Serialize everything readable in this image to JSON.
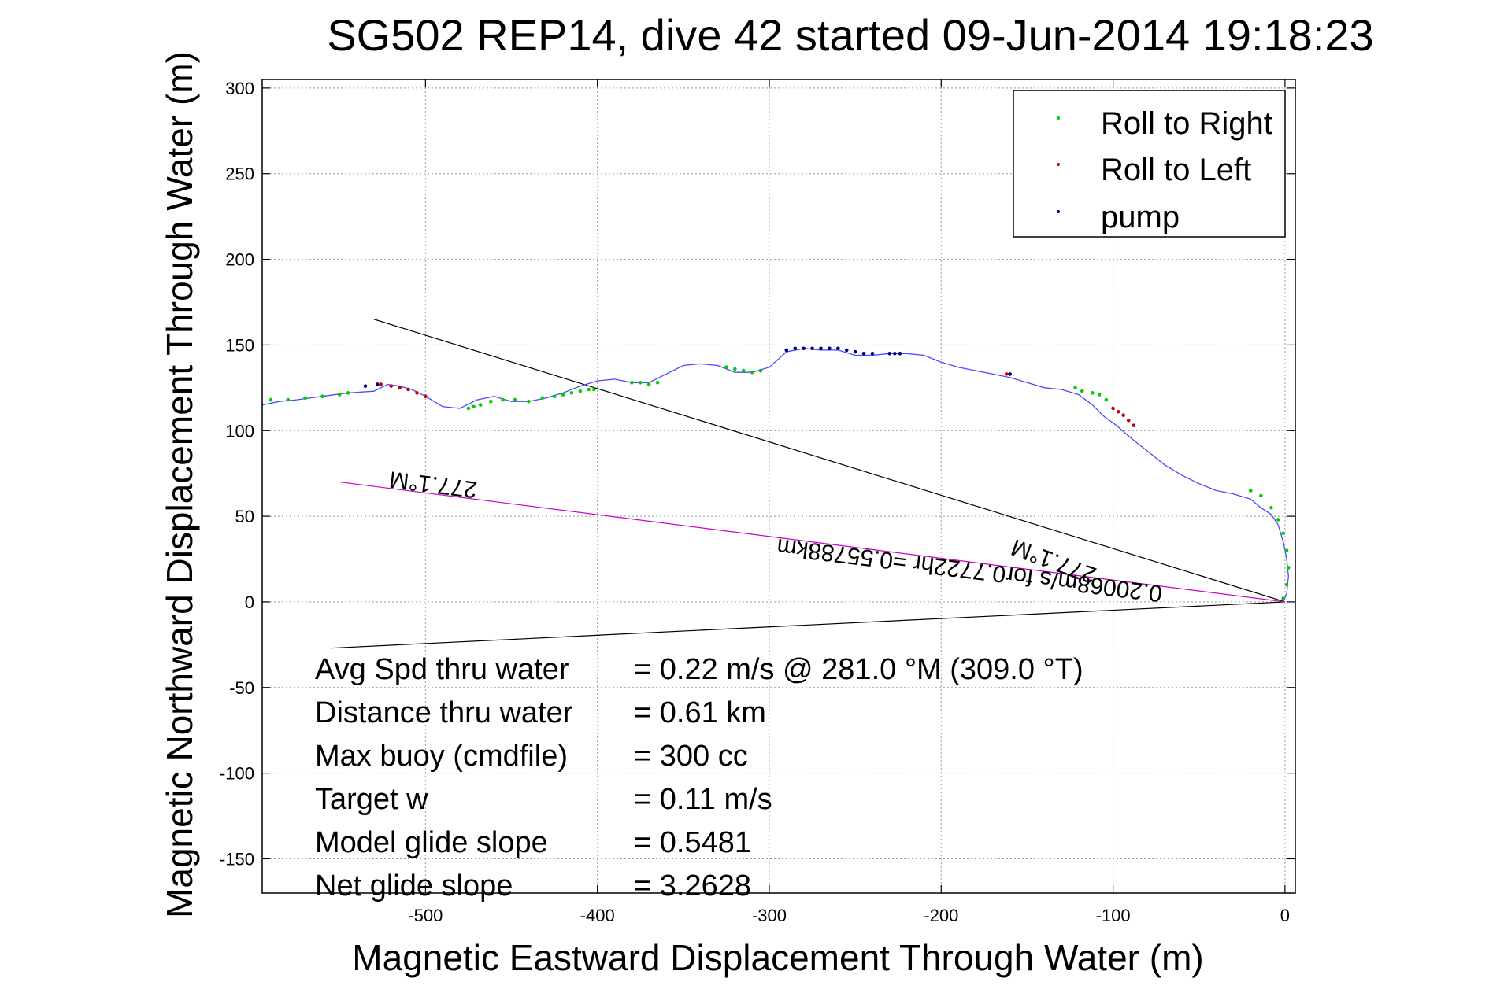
{
  "chart_data": {
    "type": "scatter",
    "title": "SG502 REP14, dive 42 started 09-Jun-2014 19:18:23",
    "xlabel": "Magnetic Eastward Displacement Through Water (m)",
    "ylabel": "Magnetic Northward Displacement Through Water (m)",
    "xlim": [
      -595,
      6
    ],
    "ylim": [
      -170,
      305
    ],
    "xticks": [
      -500,
      -400,
      -300,
      -200,
      -100,
      0
    ],
    "yticks": [
      300,
      250,
      200,
      150,
      100,
      50,
      0,
      -50,
      -100,
      -150
    ],
    "grid": true,
    "legend_position": "top-right",
    "legend": [
      {
        "label": "Roll to Right",
        "color": "#00cc00"
      },
      {
        "label": "Roll to Left",
        "color": "#cc0000"
      },
      {
        "label": "pump",
        "color": "#000080"
      }
    ],
    "track": {
      "color": "#4a4aff",
      "x": [
        -595,
        -585,
        -575,
        -560,
        -545,
        -530,
        -522,
        -515,
        -508,
        -500,
        -490,
        -480,
        -470,
        -460,
        -450,
        -440,
        -430,
        -420,
        -410,
        -400,
        -390,
        -380,
        -370,
        -360,
        -350,
        -340,
        -330,
        -320,
        -310,
        -300,
        -290,
        -280,
        -270,
        -260,
        -250,
        -240,
        -230,
        -220,
        -210,
        -200,
        -190,
        -180,
        -170,
        -160,
        -150,
        -140,
        -130,
        -120,
        -112,
        -105,
        -98,
        -90,
        -80,
        -70,
        -60,
        -50,
        -40,
        -30,
        -20,
        -14,
        -8,
        -4,
        -1,
        1,
        2,
        1,
        -1
      ],
      "y": [
        115,
        117,
        118,
        120,
        122,
        123,
        127,
        126,
        124,
        120,
        114,
        113,
        118,
        120,
        117,
        117,
        119,
        122,
        126,
        129,
        130,
        128,
        128,
        133,
        138,
        139,
        138,
        134,
        134,
        137,
        146,
        148,
        147,
        147,
        144,
        144,
        145,
        145,
        144,
        140,
        137,
        135,
        133,
        131,
        128,
        125,
        124,
        121,
        115,
        108,
        103,
        96,
        88,
        80,
        74,
        69,
        65,
        63,
        60,
        55,
        51,
        45,
        35,
        25,
        15,
        5,
        0
      ]
    },
    "series": [
      {
        "name": "Roll to Right",
        "color": "#00cc00",
        "x": [
          -590,
          -580,
          -570,
          -560,
          -550,
          -545,
          -475,
          -472,
          -468,
          -462,
          -455,
          -448,
          -440,
          -432,
          -425,
          -420,
          -415,
          -410,
          -405,
          -402,
          -380,
          -375,
          -370,
          -365,
          -325,
          -320,
          -315,
          -310,
          -305,
          -122,
          -118,
          -112,
          -108,
          -104,
          -20,
          -14,
          -8,
          -4,
          -1,
          1,
          2,
          1,
          -1
        ],
        "y": [
          118,
          118,
          119,
          120,
          121,
          122,
          113,
          114,
          115,
          117,
          118,
          118,
          117,
          119,
          120,
          121,
          122,
          123,
          124,
          124,
          128,
          128,
          127,
          128,
          137,
          136,
          135,
          134,
          135,
          125,
          123,
          122,
          121,
          118,
          65,
          62,
          55,
          48,
          40,
          30,
          20,
          10,
          2
        ]
      },
      {
        "name": "Roll to Left",
        "color": "#cc0000",
        "x": [
          -526,
          -520,
          -515,
          -510,
          -505,
          -500,
          -160,
          -162,
          -100,
          -97,
          -94,
          -91,
          -88
        ],
        "y": [
          127,
          126,
          125,
          124,
          122,
          120,
          133,
          133,
          113,
          111,
          109,
          106,
          103
        ]
      },
      {
        "name": "pump",
        "color": "#000080",
        "x": [
          -290,
          -285,
          -280,
          -275,
          -270,
          -265,
          -260,
          -255,
          -250,
          -245,
          -240,
          -230,
          -227,
          -224,
          -160,
          -535,
          -528
        ],
        "y": [
          147,
          148,
          148,
          148,
          148,
          148,
          148,
          147,
          146,
          145,
          145,
          145,
          145,
          145,
          133,
          126,
          127
        ]
      }
    ],
    "reference_lines": [
      {
        "color": "#000000",
        "x": [
          0,
          -530
        ],
        "y": [
          0,
          165
        ]
      },
      {
        "color": "#000000",
        "x": [
          0,
          -555
        ],
        "y": [
          0,
          -27
        ]
      },
      {
        "color": "#cc00cc",
        "x": [
          0,
          -550
        ],
        "y": [
          0,
          70
        ]
      }
    ],
    "annotations": [
      {
        "text": "277.1°M",
        "x": -495,
        "y": 73,
        "rotation": 187
      },
      {
        "text": "277.1°M",
        "x": -133,
        "y": 28,
        "rotation": 200
      },
      {
        "text": "0.20068m/s for0.7722hr =0.55788km",
        "x": -183,
        "y": 23,
        "rotation": 187
      }
    ],
    "info_box": [
      {
        "label": "Avg Spd thru water",
        "value": "=  0.22 m/s @ 281.0 °M (309.0 °T)"
      },
      {
        "label": "Distance thru water",
        "value": "=  0.61 km"
      },
      {
        "label": "Max buoy (cmdfile)",
        "value": "= 300 cc"
      },
      {
        "label": "Target w",
        "value": "= 0.11 m/s"
      },
      {
        "label": "Model glide slope",
        "value": "= 0.5481"
      },
      {
        "label": "Net glide slope",
        "value": "= 3.2628"
      }
    ]
  }
}
